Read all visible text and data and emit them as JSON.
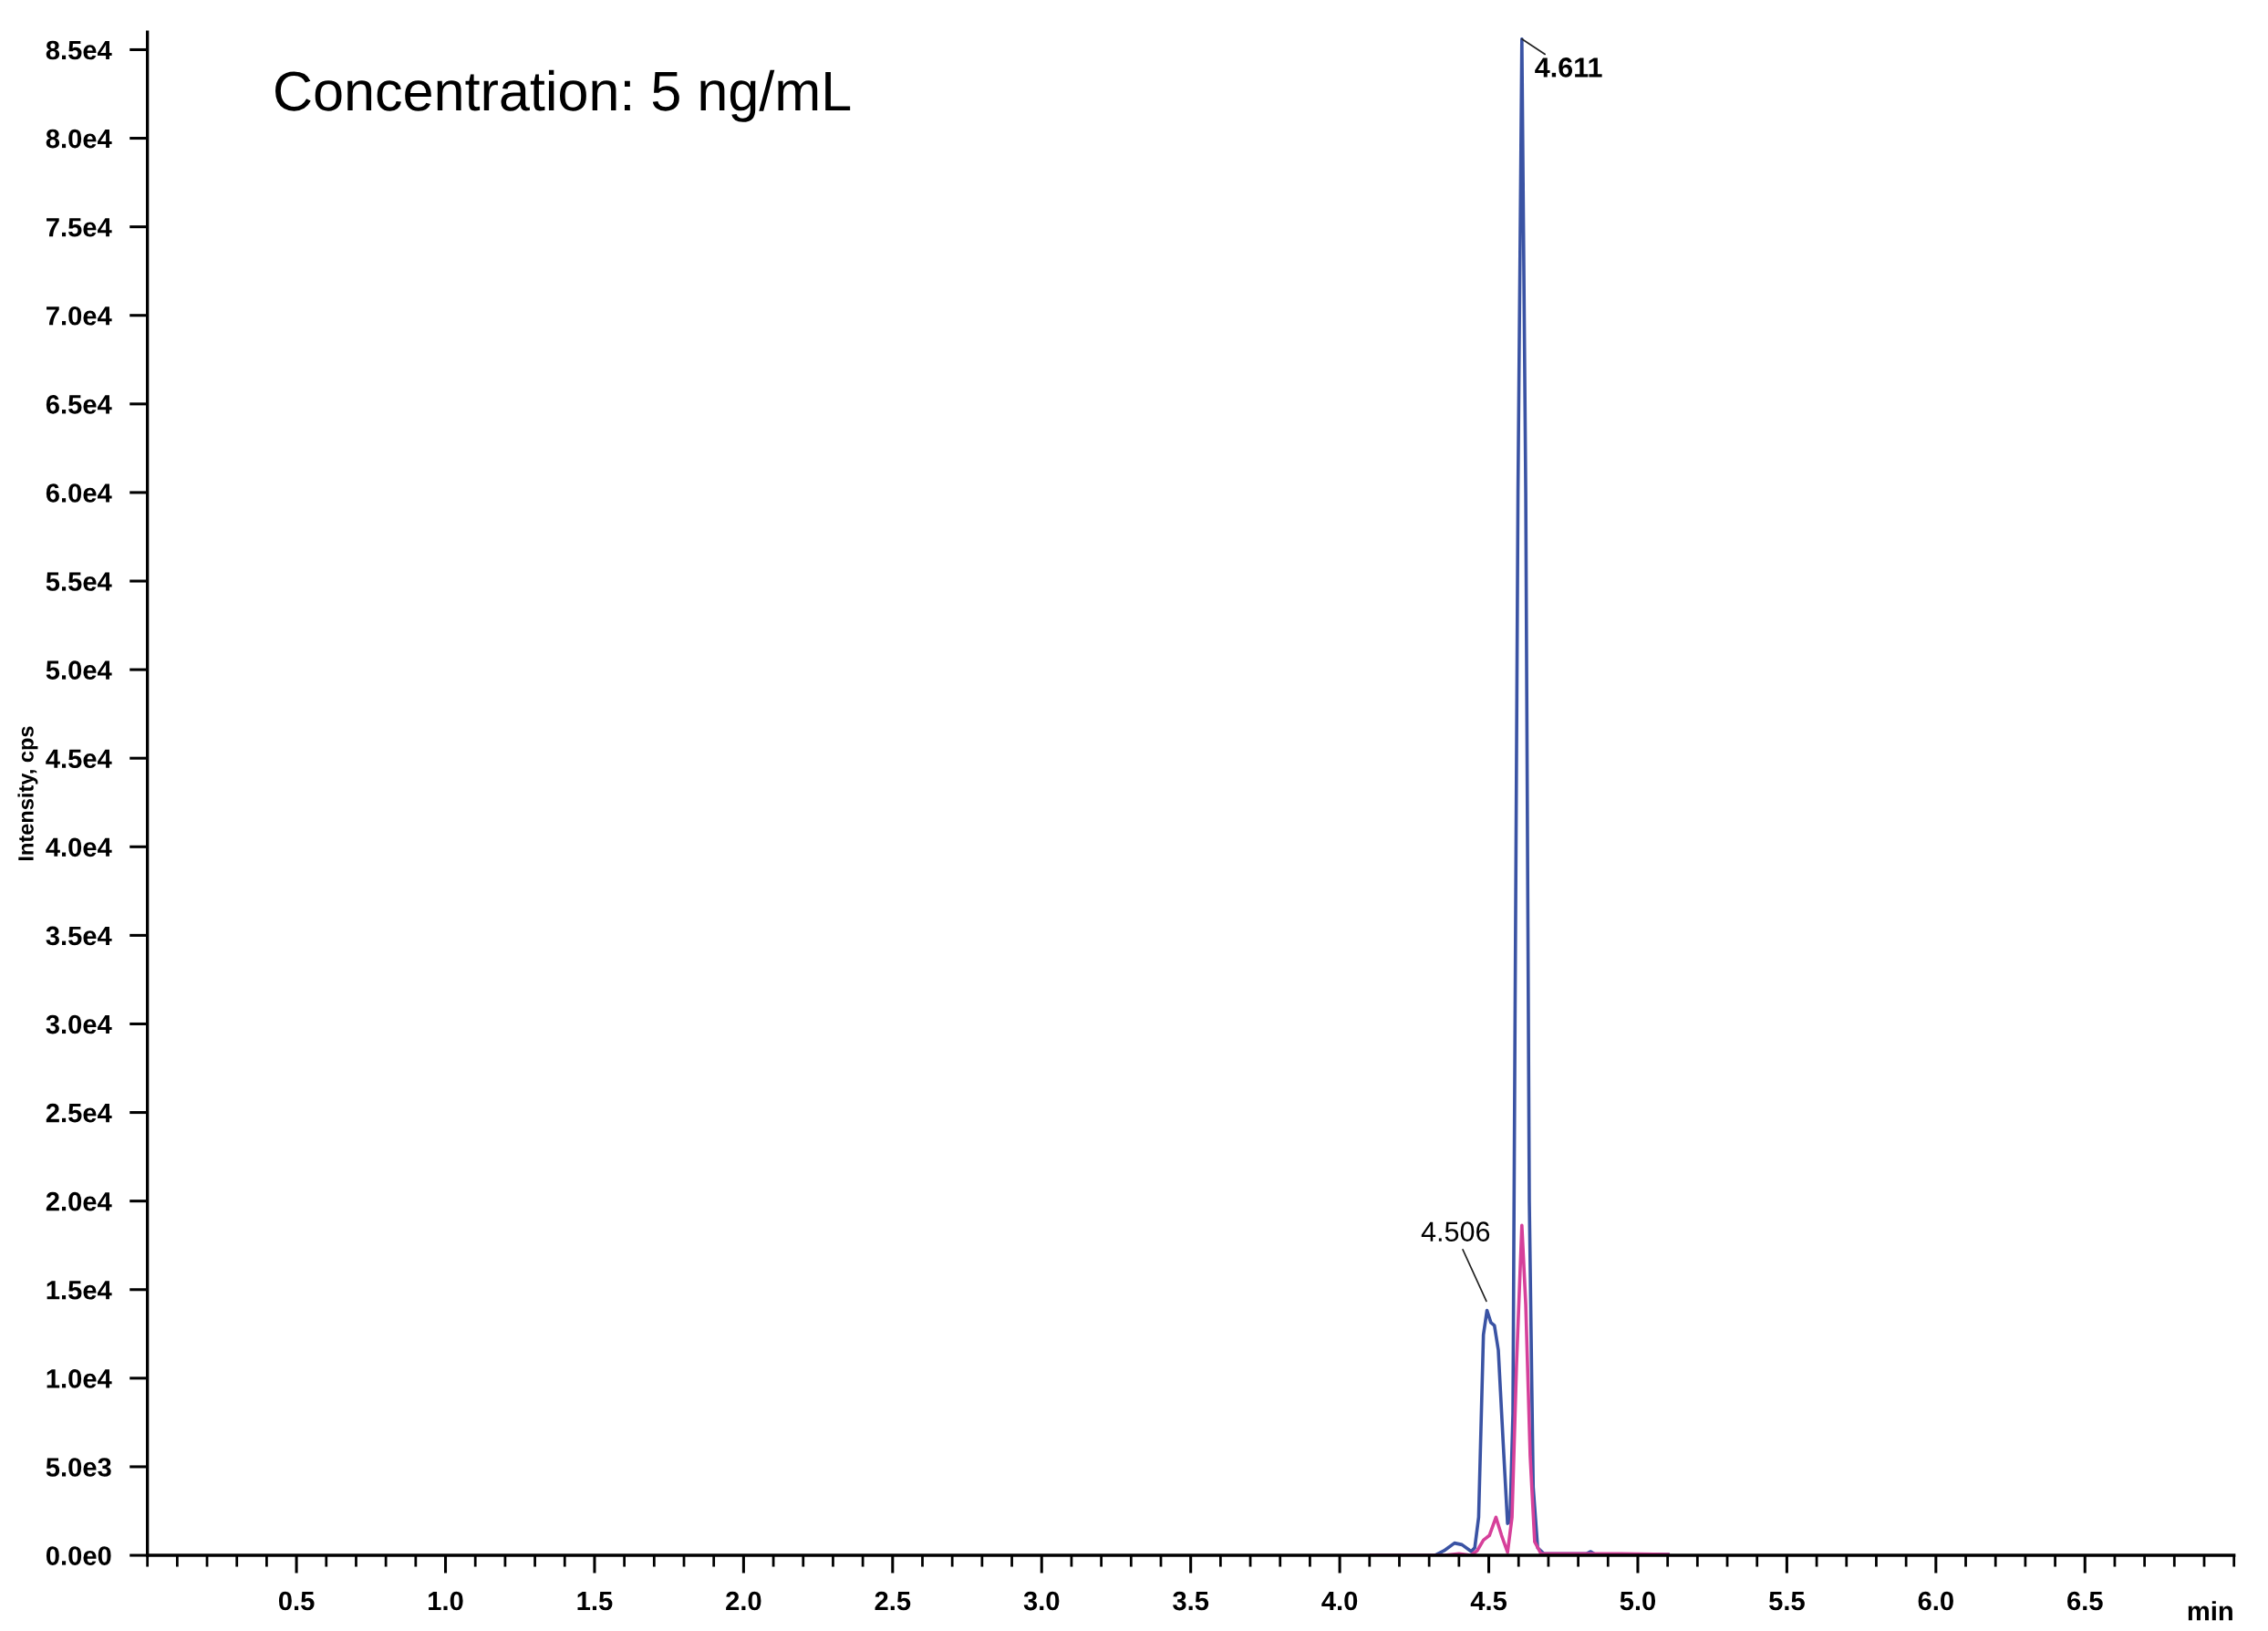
{
  "chart_data": {
    "type": "line",
    "title": "Concentration: 5 ng/mL",
    "xlabel": "min",
    "ylabel": "Intensity, cps",
    "series": [
      {
        "color": "#3a53a4",
        "x": [
          4.106,
          4.319,
          4.35,
          4.385,
          4.41,
          4.441,
          4.453,
          4.466,
          4.482,
          4.494,
          4.507,
          4.519,
          4.532,
          4.548,
          4.563,
          4.571,
          4.581,
          4.588,
          4.598,
          4.611,
          4.624,
          4.636,
          4.649,
          4.664,
          4.685,
          4.827,
          4.842,
          4.857,
          5.101
        ],
        "values": [
          0,
          0,
          260,
          690,
          600,
          220,
          430,
          2150,
          12450,
          13830,
          13140,
          12970,
          11590,
          6440,
          1800,
          1890,
          8000,
          30000,
          60000,
          85600,
          60000,
          20000,
          3860,
          430,
          90,
          90,
          210,
          50,
          50
        ]
      },
      {
        "color": "#d6409a",
        "x": [
          4.106,
          4.35,
          4.4,
          4.44,
          4.461,
          4.482,
          4.502,
          4.524,
          4.543,
          4.563,
          4.578,
          4.593,
          4.611,
          4.624,
          4.639,
          4.654,
          4.675,
          4.928,
          5.101
        ],
        "values": [
          0,
          0,
          90,
          0,
          260,
          860,
          1120,
          2150,
          1120,
          170,
          2150,
          10730,
          18630,
          14170,
          5580,
          770,
          90,
          90,
          50
        ]
      }
    ],
    "annotations": [
      {
        "text": "4.506",
        "x": 4.506,
        "y": 13830
      },
      {
        "text": "4.611",
        "x": 4.611,
        "y": 85600
      }
    ],
    "xlim": [
      0,
      7.0
    ],
    "xticks": [
      0.5,
      {
        "value": 1,
        "label": "1.0"
      },
      1.5,
      {
        "value": 2,
        "label": "2.0"
      },
      2.5,
      {
        "value": 3,
        "label": "3.0"
      },
      3.5,
      {
        "value": 4,
        "label": "4.0"
      },
      4.5,
      {
        "value": 5,
        "label": "5.0"
      },
      5.5,
      {
        "value": 6,
        "label": "6.0"
      },
      6.5
    ],
    "ylim": [
      0,
      86000
    ],
    "yticks": [
      {
        "value": 0,
        "label": "0.0e0"
      },
      {
        "value": 5000,
        "label": "5.0e3"
      },
      {
        "value": 10000,
        "label": "1.0e4"
      },
      {
        "value": 15000,
        "label": "1.5e4"
      },
      {
        "value": 20000,
        "label": "2.0e4"
      },
      {
        "value": 25000,
        "label": "2.5e4"
      },
      {
        "value": 30000,
        "label": "3.0e4"
      },
      {
        "value": 35000,
        "label": "3.5e4"
      },
      {
        "value": 40000,
        "label": "4.0e4"
      },
      {
        "value": 45000,
        "label": "4.5e4"
      },
      {
        "value": 50000,
        "label": "5.0e4"
      },
      {
        "value": 55000,
        "label": "5.5e4"
      },
      {
        "value": 60000,
        "label": "6.0e4"
      },
      {
        "value": 65000,
        "label": "6.5e4"
      },
      {
        "value": 70000,
        "label": "7.0e4"
      },
      {
        "value": 75000,
        "label": "7.5e4"
      },
      {
        "value": 80000,
        "label": "8.0e4"
      },
      {
        "value": 85000,
        "label": "8.5e4"
      }
    ],
    "grid": false,
    "legend": false,
    "marker": "none",
    "line_style": "solid"
  }
}
